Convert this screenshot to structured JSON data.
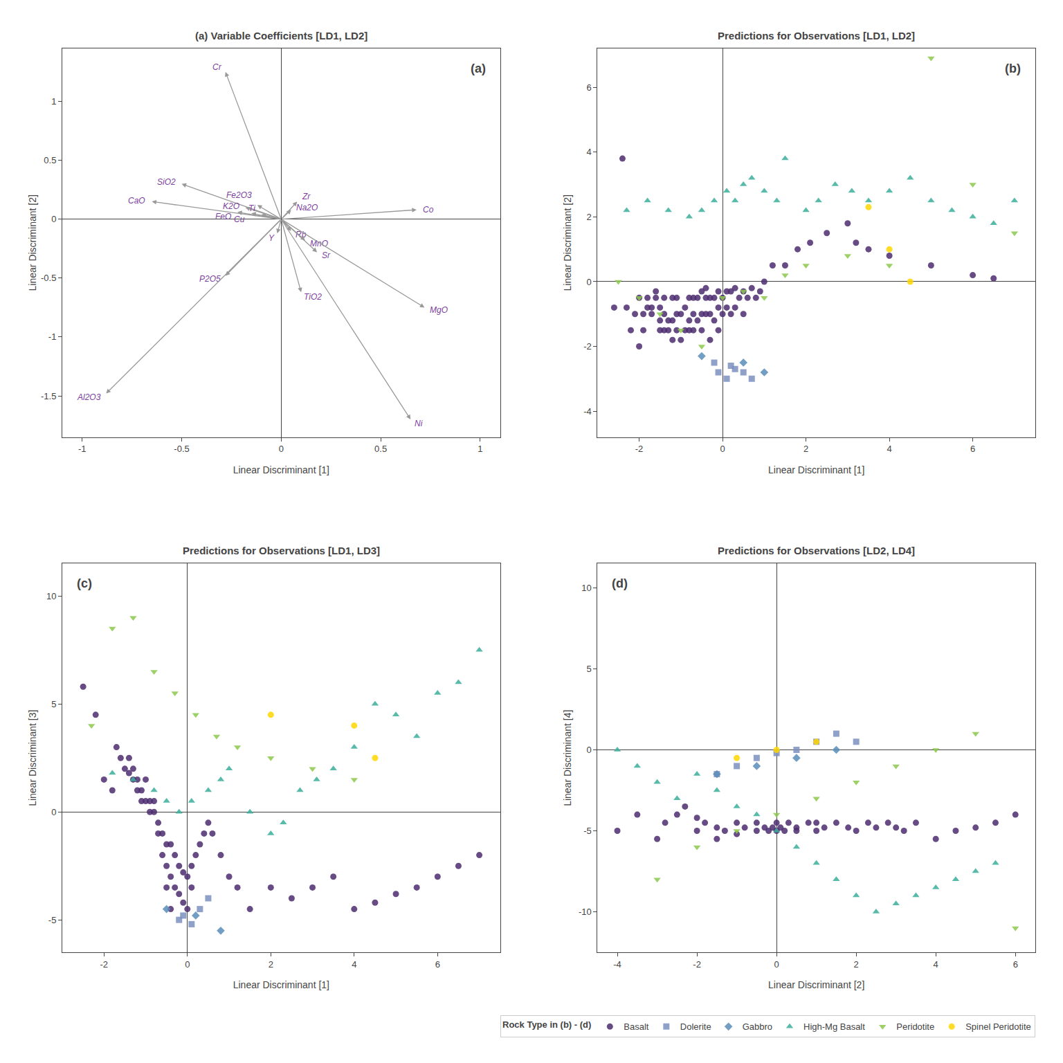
{
  "chart_data": [
    {
      "type": "vector",
      "title": "(a) Variable Coefficients [LD1, LD2]",
      "panel_label": "(a)",
      "x_label": "Linear Discriminant [1]",
      "y_label": "Linear Discriminant [2]",
      "xlim": [
        -1.1,
        1.1
      ],
      "ylim": [
        -1.85,
        1.45
      ],
      "xticks": [
        -1,
        -0.5,
        0,
        0.5,
        1
      ],
      "yticks": [
        -1.5,
        -1,
        -0.5,
        0,
        0.5,
        1
      ],
      "grid": false,
      "series": [
        {
          "color": "#999999",
          "label_color": "#7B3F9E",
          "labels": [
            "Cr",
            "SiO2",
            "CaO",
            "K2O",
            "Fe2O3",
            "FeO",
            "Cu",
            "Ti",
            "Na2O",
            "Zr",
            "Co",
            "Y",
            "Rb",
            "MnO",
            "Sr",
            "P2O5",
            "TiO2",
            "MgO",
            "Al2O3",
            "Ni"
          ],
          "x": [
            -0.28,
            -0.5,
            -0.65,
            -0.18,
            -0.12,
            -0.22,
            -0.15,
            -0.1,
            0.05,
            0.08,
            0.68,
            -0.02,
            0.05,
            0.12,
            0.18,
            -0.28,
            0.1,
            0.72,
            -0.88,
            0.65
          ],
          "values": [
            1.25,
            0.3,
            0.15,
            0.1,
            0.12,
            0.06,
            0.05,
            0.04,
            0.08,
            0.15,
            0.08,
            -0.12,
            -0.1,
            -0.18,
            -0.28,
            -0.48,
            -0.62,
            -0.75,
            -1.48,
            -1.7
          ]
        }
      ]
    },
    {
      "type": "scatter",
      "title": "Predictions for Observations [LD1, LD2]",
      "panel_label": "(b)",
      "x_label": "Linear Discriminant [1]",
      "y_label": "Linear Discriminant [2]",
      "xlim": [
        -3.0,
        7.5
      ],
      "ylim": [
        -4.8,
        7.2
      ],
      "xticks": [
        -2,
        0,
        2,
        4,
        6
      ],
      "yticks": [
        -4,
        -2,
        0,
        2,
        4,
        6
      ],
      "grid": false,
      "series": [
        {
          "name": "Basalt",
          "color": "#4B2C6E",
          "marker": "circle",
          "x": [
            -2.6,
            -2.4,
            -2.3,
            -2.2,
            -2.1,
            -2.0,
            -2.0,
            -1.9,
            -1.9,
            -1.8,
            -1.8,
            -1.7,
            -1.7,
            -1.6,
            -1.6,
            -1.5,
            -1.5,
            -1.5,
            -1.4,
            -1.4,
            -1.4,
            -1.3,
            -1.3,
            -1.2,
            -1.2,
            -1.2,
            -1.1,
            -1.1,
            -1.1,
            -1.0,
            -1.0,
            -0.9,
            -0.9,
            -0.8,
            -0.8,
            -0.8,
            -0.7,
            -0.7,
            -0.7,
            -0.6,
            -0.6,
            -0.5,
            -0.5,
            -0.5,
            -0.4,
            -0.4,
            -0.4,
            -0.3,
            -0.3,
            -0.3,
            -0.2,
            -0.2,
            -0.1,
            -0.1,
            -0.1,
            0.0,
            0.0,
            0.1,
            0.1,
            0.2,
            0.2,
            0.3,
            0.3,
            0.4,
            0.5,
            0.5,
            0.6,
            0.7,
            0.8,
            0.9,
            1.0,
            1.2,
            1.5,
            1.8,
            2.1,
            2.5,
            3.0,
            3.2,
            3.5,
            4.0,
            5.0,
            6.0,
            6.5
          ],
          "values": [
            -0.8,
            3.8,
            -0.8,
            -1.5,
            -1.0,
            -0.5,
            -2.0,
            -1.5,
            -1.0,
            -0.8,
            -0.5,
            -1.0,
            -0.8,
            -0.5,
            -0.3,
            -1.5,
            -1.2,
            -0.8,
            -1.5,
            -1.0,
            -0.5,
            -1.5,
            -1.2,
            -1.8,
            -1.2,
            -0.5,
            -1.5,
            -1.0,
            -0.5,
            -1.8,
            -1.0,
            -1.5,
            -0.8,
            -1.5,
            -1.2,
            -0.5,
            -1.5,
            -1.0,
            -0.5,
            -1.2,
            -0.5,
            -1.5,
            -1.0,
            -0.3,
            -1.0,
            -0.5,
            -0.2,
            -1.8,
            -1.0,
            -0.5,
            -1.2,
            -0.5,
            -1.5,
            -0.8,
            -0.3,
            -1.0,
            -0.5,
            -0.8,
            -0.3,
            -1.0,
            -0.3,
            -0.8,
            -0.2,
            -0.5,
            -1.0,
            -0.3,
            -0.5,
            -0.2,
            -0.5,
            -0.3,
            0.0,
            0.5,
            0.5,
            1.0,
            1.2,
            1.5,
            1.8,
            1.2,
            1.0,
            0.8,
            0.5,
            0.2,
            0.1
          ]
        },
        {
          "name": "Dolerite",
          "color": "#7B8FC0",
          "marker": "square",
          "x": [
            -0.2,
            -0.1,
            0.1,
            0.2,
            0.3,
            0.5,
            0.7
          ],
          "values": [
            -2.5,
            -2.8,
            -3.0,
            -2.6,
            -2.7,
            -2.8,
            -3.0
          ]
        },
        {
          "name": "Gabbro",
          "color": "#5B8DB8",
          "marker": "diamond",
          "x": [
            -0.5,
            0.5,
            1.0
          ],
          "values": [
            -2.3,
            -2.5,
            -2.8
          ]
        },
        {
          "name": "High-Mg Basalt",
          "color": "#3BAE9A",
          "marker": "triangle-up",
          "x": [
            -2.3,
            -1.8,
            -1.3,
            -0.8,
            -0.5,
            -0.2,
            0.1,
            0.3,
            0.5,
            0.7,
            1.0,
            1.3,
            1.5,
            2.0,
            2.3,
            2.7,
            3.1,
            3.5,
            4.0,
            4.5,
            5.0,
            5.5,
            6.0,
            6.5,
            7.0
          ],
          "values": [
            2.2,
            2.5,
            2.2,
            2.0,
            2.2,
            2.5,
            2.8,
            2.5,
            3.0,
            3.2,
            2.8,
            2.5,
            3.8,
            2.2,
            2.5,
            3.0,
            2.8,
            2.5,
            2.8,
            3.2,
            2.5,
            2.2,
            2.0,
            1.8,
            2.5
          ]
        },
        {
          "name": "Peridotite",
          "color": "#8CC84B",
          "marker": "triangle-down",
          "x": [
            -2.5,
            -2.0,
            -1.5,
            -1.0,
            -0.5,
            0.0,
            0.5,
            1.0,
            1.5,
            2.0,
            3.0,
            4.0,
            5.0,
            6.0,
            7.0
          ],
          "values": [
            0.0,
            -0.5,
            -1.0,
            -1.5,
            -2.0,
            -0.5,
            -0.3,
            -0.5,
            0.2,
            0.5,
            0.8,
            0.5,
            6.9,
            3.0,
            1.5
          ]
        },
        {
          "name": "Spinel Peridotite",
          "color": "#FFD700",
          "marker": "circle",
          "x": [
            3.5,
            4.0,
            4.5
          ],
          "values": [
            2.3,
            1.0,
            0.0
          ]
        }
      ]
    },
    {
      "type": "scatter",
      "title": "Predictions for Observations [LD1, LD3]",
      "panel_label": "(c)",
      "x_label": "Linear Discriminant [1]",
      "y_label": "Linear Discriminant [3]",
      "xlim": [
        -3.0,
        7.5
      ],
      "ylim": [
        -6.5,
        11.5
      ],
      "xticks": [
        -2,
        0,
        2,
        4,
        6
      ],
      "yticks": [
        -5,
        0,
        5,
        10
      ],
      "grid": false,
      "series": [
        {
          "name": "Basalt",
          "color": "#4B2C6E",
          "marker": "circle",
          "x": [
            -2.5,
            -2.2,
            -2.0,
            -1.8,
            -1.7,
            -1.6,
            -1.5,
            -1.4,
            -1.4,
            -1.3,
            -1.3,
            -1.2,
            -1.2,
            -1.1,
            -1.1,
            -1.0,
            -1.0,
            -0.9,
            -0.9,
            -0.8,
            -0.8,
            -0.7,
            -0.7,
            -0.6,
            -0.6,
            -0.5,
            -0.5,
            -0.5,
            -0.4,
            -0.4,
            -0.4,
            -0.3,
            -0.3,
            -0.2,
            -0.2,
            -0.1,
            -0.1,
            0.0,
            0.0,
            0.1,
            0.1,
            0.2,
            0.3,
            0.4,
            0.5,
            0.6,
            0.8,
            1.0,
            1.2,
            1.5,
            2.0,
            2.5,
            3.0,
            3.5,
            4.0,
            4.5,
            5.0,
            5.5,
            6.0,
            6.5,
            7.0
          ],
          "values": [
            5.8,
            4.5,
            1.5,
            1.0,
            3.0,
            2.5,
            2.0,
            2.5,
            1.8,
            2.0,
            1.5,
            1.5,
            1.0,
            1.0,
            0.5,
            1.5,
            0.5,
            0.5,
            0.0,
            0.5,
            0.0,
            -0.5,
            -1.0,
            -1.0,
            -2.0,
            -1.5,
            -2.5,
            -3.5,
            -1.5,
            -3.0,
            -4.5,
            -2.0,
            -3.5,
            -2.5,
            -3.8,
            -2.8,
            -4.2,
            -3.0,
            -4.5,
            -3.5,
            -2.5,
            -2.0,
            -1.5,
            -1.0,
            -0.5,
            -1.0,
            -2.0,
            -3.0,
            -3.5,
            -4.5,
            -3.5,
            -4.0,
            -3.5,
            -3.0,
            -4.5,
            -4.2,
            -3.8,
            -3.5,
            -3.0,
            -2.5,
            -2.0
          ]
        },
        {
          "name": "Dolerite",
          "color": "#7B8FC0",
          "marker": "square",
          "x": [
            -0.2,
            -0.1,
            0.1,
            0.3,
            0.5
          ],
          "values": [
            -5.0,
            -4.8,
            -5.2,
            -4.5,
            -4.0
          ]
        },
        {
          "name": "Gabbro",
          "color": "#5B8DB8",
          "marker": "diamond",
          "x": [
            -0.5,
            0.2,
            0.8
          ],
          "values": [
            -4.5,
            -4.8,
            -5.5
          ]
        },
        {
          "name": "High-Mg Basalt",
          "color": "#3BAE9A",
          "marker": "triangle-up",
          "x": [
            -1.8,
            -1.3,
            -0.8,
            -0.5,
            -0.2,
            0.1,
            0.5,
            0.8,
            1.0,
            1.5,
            2.0,
            2.3,
            2.7,
            3.1,
            3.5,
            4.0,
            4.5,
            5.0,
            5.5,
            6.0,
            6.5,
            7.0
          ],
          "values": [
            1.8,
            1.5,
            1.0,
            0.5,
            0.0,
            0.5,
            1.0,
            1.5,
            2.0,
            0.0,
            -1.0,
            -0.5,
            1.0,
            1.5,
            2.0,
            3.0,
            5.0,
            4.5,
            3.5,
            5.5,
            6.0,
            7.5
          ]
        },
        {
          "name": "Peridotite",
          "color": "#8CC84B",
          "marker": "triangle-down",
          "x": [
            -2.3,
            -1.8,
            -1.3,
            -0.8,
            -0.3,
            0.2,
            0.7,
            1.2,
            2.0,
            3.0,
            4.0
          ],
          "values": [
            4.0,
            8.5,
            9.0,
            6.5,
            5.5,
            4.5,
            3.5,
            3.0,
            2.5,
            2.0,
            1.5
          ]
        },
        {
          "name": "Spinel Peridotite",
          "color": "#FFD700",
          "marker": "circle",
          "x": [
            2.0,
            4.0,
            4.5
          ],
          "values": [
            4.5,
            4.0,
            2.5
          ]
        }
      ]
    },
    {
      "type": "scatter",
      "title": "Predictions for Observations [LD2, LD4]",
      "panel_label": "(d)",
      "x_label": "Linear Discriminant [2]",
      "y_label": "Linear Discriminant [4]",
      "xlim": [
        -4.5,
        6.5
      ],
      "ylim": [
        -12.5,
        11.5
      ],
      "xticks": [
        -4,
        -2,
        0,
        2,
        4,
        6
      ],
      "yticks": [
        -10,
        -5,
        0,
        5,
        10
      ],
      "grid": false,
      "legend": "lower right",
      "legend_title": "Rock Type in (b) - (d)",
      "series": [
        {
          "name": "Basalt",
          "color": "#4B2C6E",
          "marker": "circle",
          "x": [
            -4.0,
            -3.5,
            -3.0,
            -2.8,
            -2.5,
            -2.3,
            -2.0,
            -2.0,
            -1.8,
            -1.5,
            -1.5,
            -1.3,
            -1.0,
            -1.0,
            -0.8,
            -0.5,
            -0.5,
            -0.3,
            -0.2,
            -0.1,
            0.0,
            0.0,
            0.1,
            0.2,
            0.3,
            0.5,
            0.5,
            0.8,
            1.0,
            1.0,
            1.2,
            1.5,
            1.8,
            2.0,
            2.3,
            2.5,
            2.8,
            3.0,
            3.2,
            3.5,
            4.0,
            4.5,
            5.0,
            5.5,
            6.0
          ],
          "values": [
            -5.0,
            -4.0,
            -5.5,
            -4.5,
            -4.0,
            -3.5,
            -5.0,
            -4.2,
            -4.5,
            -5.5,
            -4.8,
            -5.0,
            -5.2,
            -4.5,
            -4.8,
            -5.0,
            -4.5,
            -4.8,
            -5.0,
            -4.8,
            -5.0,
            -4.5,
            -4.8,
            -5.0,
            -4.5,
            -4.8,
            -5.0,
            -4.5,
            -5.0,
            -4.5,
            -4.8,
            -4.5,
            -4.8,
            -5.0,
            -4.5,
            -4.8,
            -4.5,
            -4.8,
            -5.0,
            -4.5,
            -5.5,
            -5.0,
            -4.8,
            -4.5,
            -4.0
          ]
        },
        {
          "name": "Dolerite",
          "color": "#7B8FC0",
          "marker": "square",
          "x": [
            -1.5,
            -1.0,
            -0.5,
            0.0,
            0.5,
            1.0,
            1.5,
            2.0
          ],
          "values": [
            -1.5,
            -1.0,
            -0.5,
            -0.2,
            0.0,
            0.5,
            1.0,
            0.5
          ]
        },
        {
          "name": "Gabbro",
          "color": "#5B8DB8",
          "marker": "diamond",
          "x": [
            -1.5,
            -0.5,
            0.5,
            1.5
          ],
          "values": [
            -1.5,
            -1.0,
            -0.5,
            0.0
          ]
        },
        {
          "name": "High-Mg Basalt",
          "color": "#3BAE9A",
          "marker": "triangle-up",
          "x": [
            -4.0,
            -3.5,
            -3.0,
            -2.5,
            -2.0,
            -1.5,
            -1.0,
            -0.5,
            0.0,
            0.5,
            1.0,
            1.5,
            2.0,
            2.5,
            3.0,
            3.5,
            4.0,
            4.5,
            5.0,
            5.5
          ],
          "values": [
            0.0,
            -1.0,
            -2.0,
            -3.0,
            -1.5,
            -2.5,
            -3.5,
            -4.0,
            -5.0,
            -6.0,
            -7.0,
            -8.0,
            -9.0,
            -10.0,
            -9.5,
            -9.0,
            -8.5,
            -8.0,
            -7.5,
            -7.0
          ]
        },
        {
          "name": "Peridotite",
          "color": "#8CC84B",
          "marker": "triangle-down",
          "x": [
            -3.0,
            -2.0,
            -1.0,
            0.0,
            1.0,
            2.0,
            3.0,
            4.0,
            5.0,
            6.0
          ],
          "values": [
            -8.0,
            -6.0,
            -5.0,
            -4.0,
            -3.0,
            -2.0,
            -1.0,
            0.0,
            1.0,
            -11.0
          ]
        },
        {
          "name": "Spinel Peridotite",
          "color": "#FFD700",
          "marker": "circle",
          "x": [
            -1.0,
            0.0,
            1.0
          ],
          "values": [
            -0.5,
            0.0,
            0.5
          ]
        }
      ]
    }
  ]
}
